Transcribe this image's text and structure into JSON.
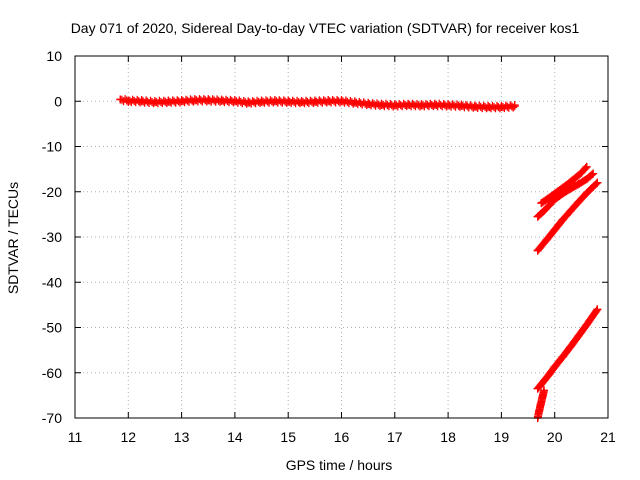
{
  "chart_data": {
    "type": "scatter",
    "title": "Day 071 of 2020, Sidereal Day-to-day VTEC variation (SDTVAR) for receiver kos1",
    "xlabel": "GPS time / hours",
    "ylabel": "SDTVAR / TECUs",
    "xlim": [
      11,
      21
    ],
    "ylim": [
      -70,
      10
    ],
    "xticks": [
      11,
      12,
      13,
      14,
      15,
      16,
      17,
      18,
      19,
      20,
      21
    ],
    "yticks": [
      -70,
      -60,
      -50,
      -40,
      -30,
      -20,
      -10,
      0,
      10
    ],
    "grid": true,
    "marker": "+",
    "colors": {
      "series": "#ff0000",
      "grid": "#b0b0b0",
      "axes": "#000000"
    },
    "series": [
      {
        "x": [
          11.85,
          12.0,
          12.25,
          12.5,
          12.75,
          13.0,
          13.25,
          13.5,
          13.75,
          14.0,
          14.25,
          14.5,
          14.75,
          15.0,
          15.25,
          15.5,
          15.75,
          16.0,
          16.25,
          16.5,
          16.75,
          17.0,
          17.25,
          17.5,
          17.75,
          18.0,
          18.25,
          18.5,
          18.75,
          19.0,
          19.25
        ],
        "y": [
          0.4,
          0.1,
          0.0,
          -0.2,
          -0.1,
          0.0,
          0.2,
          0.2,
          0.1,
          0.0,
          -0.3,
          -0.1,
          0.0,
          -0.1,
          -0.2,
          -0.1,
          0.0,
          0.0,
          -0.3,
          -0.6,
          -0.8,
          -0.9,
          -0.8,
          -0.9,
          -0.8,
          -0.9,
          -1.0,
          -1.2,
          -1.3,
          -1.3,
          -1.1
        ]
      },
      {
        "x": [
          19.68,
          19.8,
          19.9,
          20.0,
          20.15,
          20.3,
          20.45,
          20.6,
          20.72
        ],
        "y": [
          -25.5,
          -24.2,
          -23.0,
          -21.7,
          -20.4,
          -19.3,
          -18.3,
          -17.2,
          -16.0
        ]
      },
      {
        "x": [
          19.75,
          19.9,
          20.05,
          20.2,
          20.35,
          20.5,
          20.6
        ],
        "y": [
          -22.5,
          -21.3,
          -20.0,
          -18.7,
          -17.3,
          -15.8,
          -14.5
        ]
      },
      {
        "x": [
          19.68,
          19.85,
          20.0,
          20.15,
          20.3,
          20.45,
          20.6,
          20.8
        ],
        "y": [
          -33.0,
          -30.6,
          -28.4,
          -26.2,
          -24.2,
          -22.2,
          -20.3,
          -18.0
        ]
      },
      {
        "x": [
          19.68,
          19.8,
          19.9,
          20.0,
          20.15,
          20.3,
          20.45,
          20.6,
          20.8
        ],
        "y": [
          -63.5,
          -61.8,
          -60.3,
          -58.7,
          -56.5,
          -54.2,
          -51.8,
          -49.4,
          -46.0
        ]
      },
      {
        "x": [
          19.68,
          19.71,
          19.74,
          19.77,
          19.8
        ],
        "y": [
          -70.0,
          -68.4,
          -66.9,
          -65.4,
          -63.9
        ]
      }
    ]
  }
}
